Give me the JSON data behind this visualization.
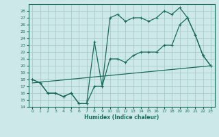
{
  "xlabel": "Humidex (Indice chaleur)",
  "bg_color": "#cce8e8",
  "grid_color": "#aacccc",
  "line_color": "#1a6b5a",
  "xlim": [
    -0.5,
    23.5
  ],
  "ylim": [
    14,
    29
  ],
  "xticks": [
    0,
    1,
    2,
    3,
    4,
    5,
    6,
    7,
    8,
    9,
    10,
    11,
    12,
    13,
    14,
    15,
    16,
    17,
    18,
    19,
    20,
    21,
    22,
    23
  ],
  "yticks": [
    14,
    15,
    16,
    17,
    18,
    19,
    20,
    21,
    22,
    23,
    24,
    25,
    26,
    27,
    28
  ],
  "line1_x": [
    0,
    1,
    2,
    3,
    4,
    5,
    6,
    7,
    8,
    9,
    10,
    11,
    12,
    13,
    14,
    15,
    16,
    17,
    18,
    19,
    20,
    21,
    22,
    23
  ],
  "line1_y": [
    18,
    17.5,
    16,
    16,
    15.5,
    16,
    14.5,
    14.5,
    17,
    17,
    21,
    21,
    20.5,
    21.5,
    22,
    22,
    22,
    23,
    23,
    26,
    27,
    24.5,
    21.5,
    20
  ],
  "line2_x": [
    0,
    1,
    2,
    3,
    4,
    5,
    6,
    7,
    8,
    9,
    10,
    11,
    12,
    13,
    14,
    15,
    16,
    17,
    18,
    19,
    20,
    21,
    22,
    23
  ],
  "line2_y": [
    18,
    17.5,
    16,
    16,
    15.5,
    16,
    14.5,
    14.5,
    23.5,
    17,
    27,
    27.5,
    26.5,
    27,
    27,
    26.5,
    27,
    28,
    27.5,
    28.5,
    27,
    24.5,
    21.5,
    20
  ],
  "line3_x": [
    0,
    23
  ],
  "line3_y": [
    17.5,
    20
  ]
}
